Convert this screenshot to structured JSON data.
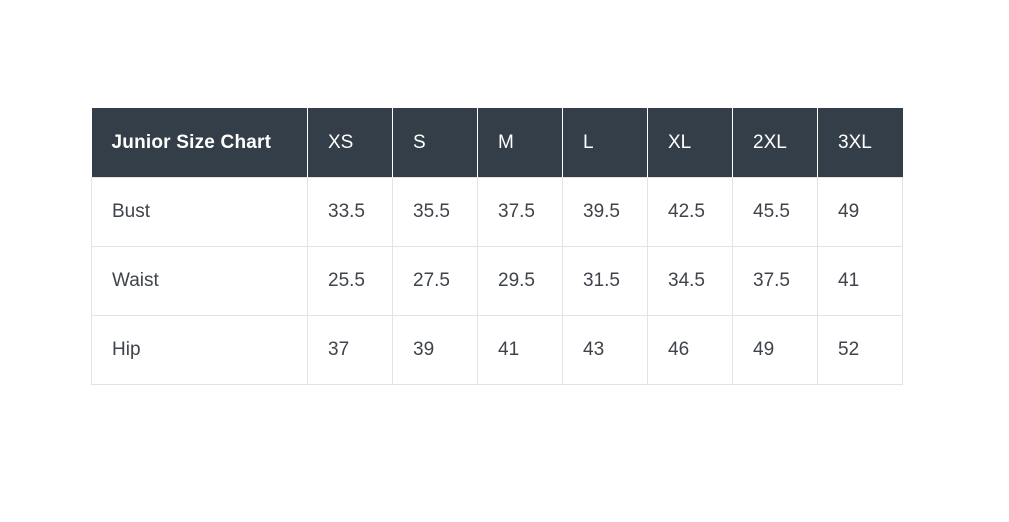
{
  "table": {
    "title": "Junior Size Chart",
    "columns": [
      "XS",
      "S",
      "M",
      "L",
      "XL",
      "2XL",
      "3XL"
    ],
    "rows": [
      {
        "label": "Bust",
        "values": [
          "33.5",
          "35.5",
          "37.5",
          "39.5",
          "42.5",
          "45.5",
          "49"
        ]
      },
      {
        "label": "Waist",
        "values": [
          "25.5",
          "27.5",
          "29.5",
          "31.5",
          "34.5",
          "37.5",
          "41"
        ]
      },
      {
        "label": "Hip",
        "values": [
          "37",
          "39",
          "41",
          "43",
          "46",
          "49",
          "52"
        ]
      }
    ]
  },
  "colors": {
    "header_bg": "#343e48",
    "header_text": "#ffffff",
    "body_text": "#3f434a",
    "border": "#e3e3e3",
    "page_bg": "#ffffff"
  },
  "chart_data": {
    "type": "table",
    "title": "Junior Size Chart",
    "columns": [
      "XS",
      "S",
      "M",
      "L",
      "XL",
      "2XL",
      "3XL"
    ],
    "rows": [
      {
        "label": "Bust",
        "values": [
          33.5,
          35.5,
          37.5,
          39.5,
          42.5,
          45.5,
          49
        ]
      },
      {
        "label": "Waist",
        "values": [
          25.5,
          27.5,
          29.5,
          31.5,
          34.5,
          37.5,
          41
        ]
      },
      {
        "label": "Hip",
        "values": [
          37,
          39,
          41,
          43,
          46,
          49,
          52
        ]
      }
    ]
  }
}
